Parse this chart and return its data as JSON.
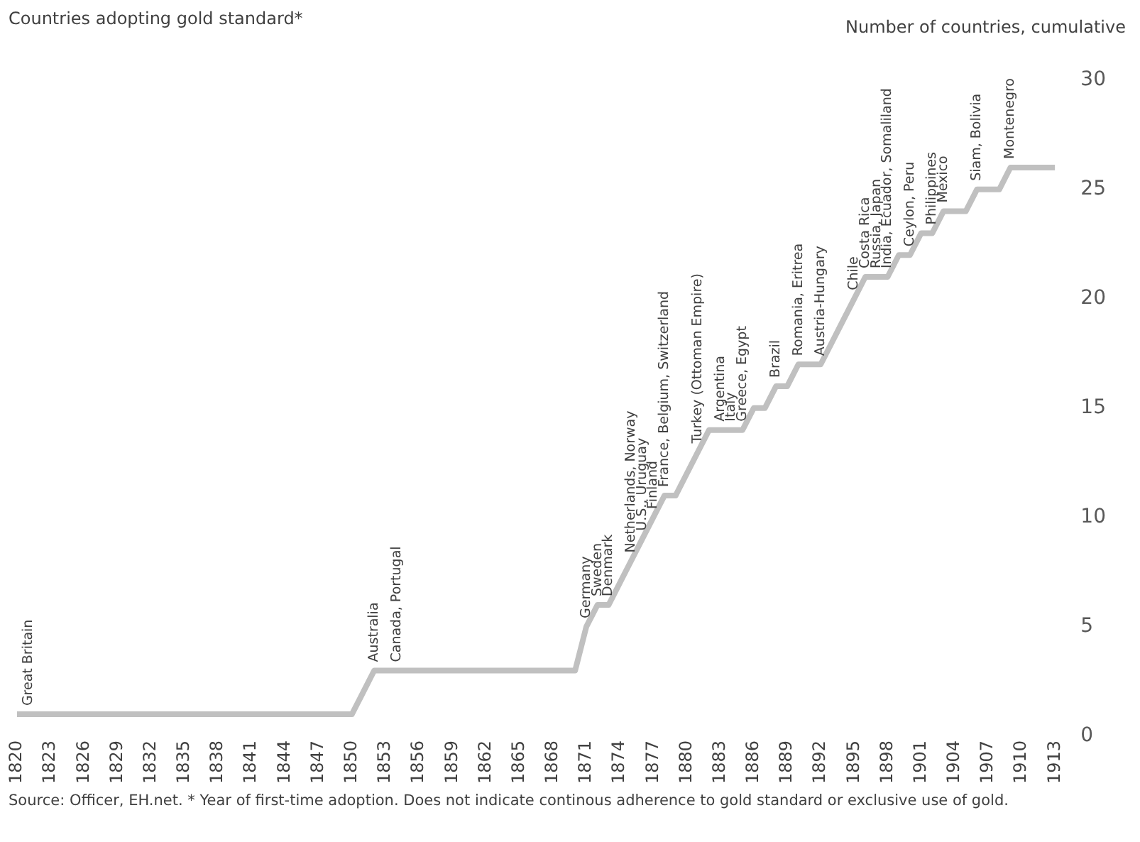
{
  "chart_data": {
    "type": "line",
    "title": "Countries adopting gold standard*",
    "ylabel": "Number of countries, cumulative",
    "x": [
      1820,
      1821,
      1822,
      1823,
      1824,
      1825,
      1826,
      1827,
      1828,
      1829,
      1830,
      1831,
      1832,
      1833,
      1834,
      1835,
      1836,
      1837,
      1838,
      1839,
      1840,
      1841,
      1842,
      1843,
      1844,
      1845,
      1846,
      1847,
      1848,
      1849,
      1850,
      1851,
      1852,
      1853,
      1854,
      1855,
      1856,
      1857,
      1858,
      1859,
      1860,
      1861,
      1862,
      1863,
      1864,
      1865,
      1866,
      1867,
      1868,
      1869,
      1870,
      1871,
      1872,
      1873,
      1874,
      1875,
      1876,
      1877,
      1878,
      1879,
      1880,
      1881,
      1882,
      1883,
      1884,
      1885,
      1886,
      1887,
      1888,
      1889,
      1890,
      1891,
      1892,
      1893,
      1894,
      1895,
      1896,
      1897,
      1898,
      1899,
      1900,
      1901,
      1902,
      1903,
      1904,
      1905,
      1906,
      1907,
      1908,
      1909,
      1910,
      1911,
      1912,
      1913
    ],
    "series": [
      {
        "color": "#c0c0c0",
        "values": [
          1,
          1,
          1,
          1,
          1,
          1,
          1,
          1,
          1,
          1,
          1,
          1,
          1,
          1,
          1,
          1,
          1,
          1,
          1,
          1,
          1,
          1,
          1,
          1,
          1,
          1,
          1,
          1,
          1,
          1,
          1,
          2,
          3,
          3,
          3,
          3,
          3,
          3,
          3,
          3,
          3,
          3,
          3,
          3,
          3,
          3,
          3,
          3,
          3,
          3,
          3,
          5,
          6,
          6,
          7,
          8,
          9,
          10,
          11,
          11,
          12,
          13,
          14,
          14,
          14,
          14,
          15,
          15,
          16,
          16,
          17,
          17,
          17,
          18,
          19,
          20,
          21,
          21,
          21,
          22,
          22,
          23,
          23,
          24,
          24,
          24,
          25,
          25,
          25,
          26,
          26,
          26,
          26,
          26
        ]
      }
    ],
    "xlim": [
      1820,
      1913
    ],
    "xticks": [
      1820,
      1823,
      1826,
      1829,
      1832,
      1835,
      1838,
      1841,
      1844,
      1847,
      1850,
      1853,
      1856,
      1859,
      1862,
      1865,
      1868,
      1871,
      1874,
      1877,
      1880,
      1883,
      1886,
      1889,
      1892,
      1895,
      1898,
      1901,
      1904,
      1907,
      1910,
      1913
    ],
    "ylim": [
      0,
      30
    ],
    "yticks": [
      0,
      5,
      10,
      15,
      20,
      25,
      30
    ],
    "grid": false,
    "legend": false,
    "marker": "none",
    "line_style": "solid",
    "annotations": [
      {
        "text": "Great Britain",
        "x": 1821,
        "y": 1
      },
      {
        "text": "Australia",
        "x": 1852,
        "y": 3
      },
      {
        "text": "Canada, Portugal",
        "x": 1854,
        "y": 3
      },
      {
        "text": "Germany",
        "x": 1871,
        "y": 5
      },
      {
        "text": "Sweden",
        "x": 1872,
        "y": 6
      },
      {
        "text": "Denmark",
        "x": 1873,
        "y": 6
      },
      {
        "text": "Netherlands, Norway",
        "x": 1875,
        "y": 8
      },
      {
        "text": "U.S., Uruguay",
        "x": 1876,
        "y": 9
      },
      {
        "text": "Finland",
        "x": 1877,
        "y": 10
      },
      {
        "text": "France, Belgium, Switzerland",
        "x": 1878,
        "y": 11
      },
      {
        "text": "Turkey (Ottoman Empire)",
        "x": 1881,
        "y": 13
      },
      {
        "text": "Argentina",
        "x": 1883,
        "y": 14
      },
      {
        "text": "Italy",
        "x": 1884,
        "y": 14
      },
      {
        "text": "Greece, Egypt",
        "x": 1885,
        "y": 14
      },
      {
        "text": "Brazil",
        "x": 1888,
        "y": 16
      },
      {
        "text": "Romania, Eritrea",
        "x": 1890,
        "y": 17
      },
      {
        "text": "Austria-Hungary",
        "x": 1892,
        "y": 17
      },
      {
        "text": "Chile",
        "x": 1895,
        "y": 20
      },
      {
        "text": "Costa Rica",
        "x": 1896,
        "y": 21
      },
      {
        "text": "Russia, Japan",
        "x": 1897,
        "y": 21
      },
      {
        "text": "India, Ecuador, Somaliland",
        "x": 1898,
        "y": 21
      },
      {
        "text": "Ceylon, Peru",
        "x": 1900,
        "y": 22
      },
      {
        "text": "Philippines",
        "x": 1902,
        "y": 23
      },
      {
        "text": "Mexico",
        "x": 1903,
        "y": 24
      },
      {
        "text": "Siam, Bolivia",
        "x": 1906,
        "y": 25
      },
      {
        "text": "Montenegro",
        "x": 1909,
        "y": 26
      },
      "Source: Officer, EH.net. * Year of first-time adoption. Does not indicate continous adherence to gold standard or exclusive use of gold."
    ]
  }
}
